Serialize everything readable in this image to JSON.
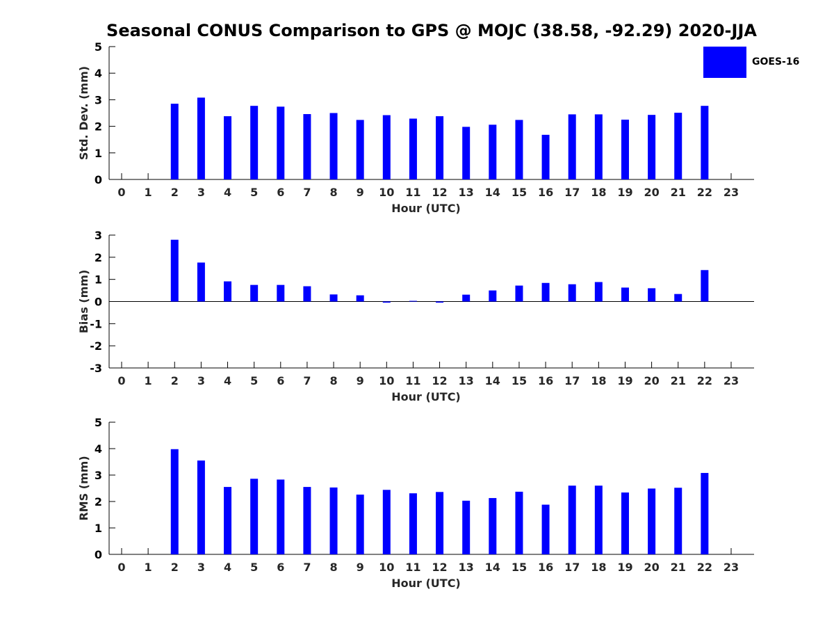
{
  "title": "Seasonal CONUS Comparison to GPS @ MOJC (38.58, -92.29) 2020-JJA",
  "legend": {
    "label": "GOES-16",
    "color": "#0000ff"
  },
  "chart_data": [
    {
      "type": "bar",
      "series_name": "GOES-16",
      "xlabel": "Hour (UTC)",
      "ylabel": "Std. Dev. (mm)",
      "ylim": [
        0,
        5
      ],
      "yticks": [
        0,
        1,
        2,
        3,
        4,
        5
      ],
      "categories": [
        "0",
        "1",
        "2",
        "3",
        "4",
        "5",
        "6",
        "7",
        "8",
        "9",
        "10",
        "11",
        "12",
        "13",
        "14",
        "15",
        "16",
        "17",
        "18",
        "19",
        "20",
        "21",
        "22",
        "23"
      ],
      "values": [
        null,
        null,
        2.85,
        3.08,
        2.38,
        2.77,
        2.74,
        2.46,
        2.5,
        2.24,
        2.42,
        2.29,
        2.38,
        1.98,
        2.06,
        2.24,
        1.68,
        2.45,
        2.45,
        2.25,
        2.43,
        2.51,
        2.77,
        null
      ]
    },
    {
      "type": "bar",
      "series_name": "GOES-16",
      "xlabel": "Hour (UTC)",
      "ylabel": "Bias (mm)",
      "ylim": [
        -3,
        3
      ],
      "yticks": [
        -3,
        -2,
        -1,
        0,
        1,
        2,
        3
      ],
      "categories": [
        "0",
        "1",
        "2",
        "3",
        "4",
        "5",
        "6",
        "7",
        "8",
        "9",
        "10",
        "11",
        "12",
        "13",
        "14",
        "15",
        "16",
        "17",
        "18",
        "19",
        "20",
        "21",
        "22",
        "23"
      ],
      "values": [
        null,
        null,
        2.79,
        1.76,
        0.91,
        0.75,
        0.75,
        0.69,
        0.32,
        0.28,
        -0.05,
        0.03,
        -0.05,
        0.31,
        0.5,
        0.72,
        0.84,
        0.78,
        0.88,
        0.63,
        0.6,
        0.34,
        1.42,
        null
      ]
    },
    {
      "type": "bar",
      "series_name": "GOES-16",
      "xlabel": "Hour (UTC)",
      "ylabel": "RMS (mm)",
      "ylim": [
        0,
        5
      ],
      "yticks": [
        0,
        1,
        2,
        3,
        4,
        5
      ],
      "categories": [
        "0",
        "1",
        "2",
        "3",
        "4",
        "5",
        "6",
        "7",
        "8",
        "9",
        "10",
        "11",
        "12",
        "13",
        "14",
        "15",
        "16",
        "17",
        "18",
        "19",
        "20",
        "21",
        "22",
        "23"
      ],
      "values": [
        null,
        null,
        3.98,
        3.55,
        2.55,
        2.86,
        2.83,
        2.55,
        2.53,
        2.26,
        2.44,
        2.31,
        2.36,
        2.03,
        2.13,
        2.37,
        1.88,
        2.6,
        2.6,
        2.34,
        2.49,
        2.52,
        3.08,
        null
      ]
    }
  ]
}
